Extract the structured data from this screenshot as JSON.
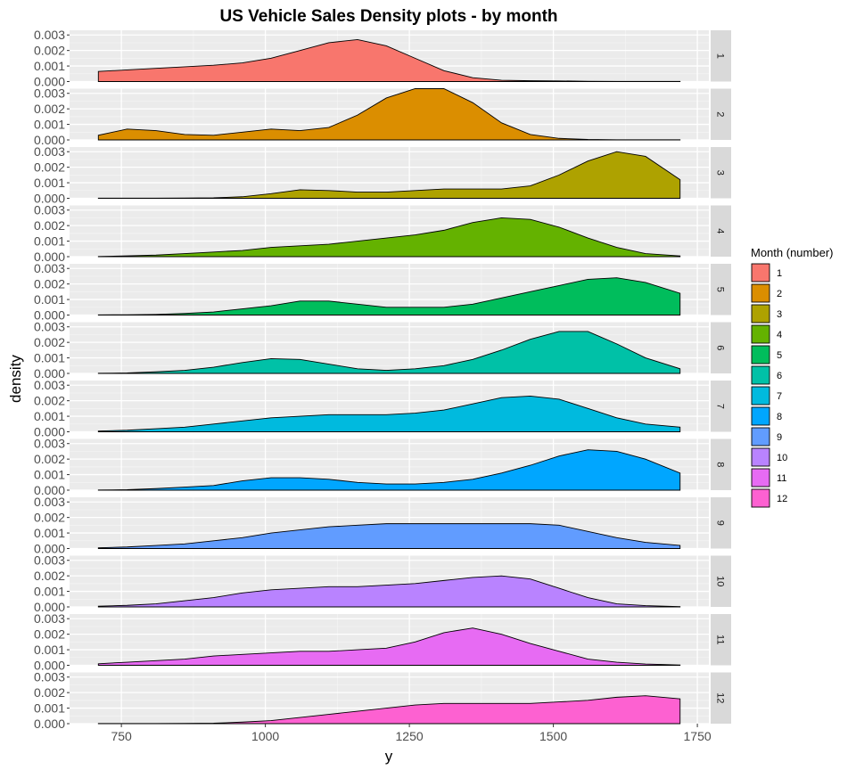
{
  "chart_data": {
    "type": "area",
    "title": "US Vehicle Sales Density plots - by month",
    "xlabel": "y",
    "ylabel": "density",
    "xlim": [
      660,
      1770
    ],
    "ylim": [
      0,
      0.0033
    ],
    "x_ticks": [
      750,
      1000,
      1250,
      1500,
      1750
    ],
    "y_ticks": [
      0.0,
      0.001,
      0.002,
      0.003
    ],
    "y_tick_labels": [
      "0.000",
      "0.001",
      "0.002",
      "0.003"
    ],
    "grid": true,
    "legend": {
      "title": "Month (number)",
      "placement": "right",
      "entries": [
        "1",
        "2",
        "3",
        "4",
        "5",
        "6",
        "7",
        "8",
        "9",
        "10",
        "11",
        "12"
      ]
    },
    "x": [
      710,
      760,
      810,
      860,
      910,
      960,
      1010,
      1060,
      1110,
      1160,
      1210,
      1260,
      1310,
      1360,
      1410,
      1460,
      1510,
      1560,
      1610,
      1660,
      1720
    ],
    "series": [
      {
        "name": "1",
        "color": "#F8766D",
        "strip": "1",
        "values": [
          0.00065,
          0.00075,
          0.00085,
          0.00095,
          0.00105,
          0.0012,
          0.0015,
          0.002,
          0.0025,
          0.0027,
          0.0023,
          0.0015,
          0.0007,
          0.00025,
          8e-05,
          5e-05,
          4e-05,
          2e-05,
          1e-05,
          1e-05,
          1e-05
        ]
      },
      {
        "name": "2",
        "color": "#DB8E00",
        "strip": "2",
        "values": [
          0.0003,
          0.0007,
          0.0006,
          0.00035,
          0.0003,
          0.0005,
          0.0007,
          0.0006,
          0.0008,
          0.0016,
          0.0027,
          0.0033,
          0.0033,
          0.0024,
          0.0011,
          0.00035,
          0.0001,
          3e-05,
          1e-05,
          1e-05,
          1e-05
        ]
      },
      {
        "name": "3",
        "color": "#AEA200",
        "strip": "3",
        "values": [
          1e-05,
          1e-05,
          1e-05,
          2e-05,
          3e-05,
          0.0001,
          0.0003,
          0.00055,
          0.0005,
          0.0004,
          0.0004,
          0.0005,
          0.0006,
          0.0006,
          0.0006,
          0.0008,
          0.0015,
          0.0024,
          0.003,
          0.0027,
          0.0012
        ]
      },
      {
        "name": "4",
        "color": "#64B200",
        "strip": "4",
        "values": [
          1e-05,
          5e-05,
          0.0001,
          0.0002,
          0.0003,
          0.0004,
          0.0006,
          0.0007,
          0.0008,
          0.001,
          0.0012,
          0.0014,
          0.0017,
          0.0022,
          0.0025,
          0.0024,
          0.0019,
          0.0012,
          0.0006,
          0.0002,
          5e-05
        ]
      },
      {
        "name": "5",
        "color": "#00BD5C",
        "strip": "5",
        "values": [
          1e-05,
          2e-05,
          4e-05,
          0.0001,
          0.0002,
          0.0004,
          0.0006,
          0.0009,
          0.0009,
          0.0007,
          0.0005,
          0.0005,
          0.0005,
          0.0007,
          0.0011,
          0.0015,
          0.0019,
          0.0023,
          0.0024,
          0.0021,
          0.0014
        ]
      },
      {
        "name": "6",
        "color": "#00C1A7",
        "strip": "6",
        "values": [
          1e-05,
          3e-05,
          0.0001,
          0.0002,
          0.0004,
          0.0007,
          0.00095,
          0.0009,
          0.0006,
          0.0003,
          0.0002,
          0.0003,
          0.0005,
          0.0009,
          0.0015,
          0.0022,
          0.0027,
          0.0027,
          0.0019,
          0.001,
          0.0003
        ]
      },
      {
        "name": "7",
        "color": "#00BADE",
        "strip": "7",
        "values": [
          5e-05,
          0.0001,
          0.0002,
          0.0003,
          0.0005,
          0.0007,
          0.0009,
          0.001,
          0.0011,
          0.0011,
          0.0011,
          0.0012,
          0.0014,
          0.0018,
          0.0022,
          0.0023,
          0.0021,
          0.0015,
          0.0009,
          0.0005,
          0.0003
        ]
      },
      {
        "name": "8",
        "color": "#00A6FF",
        "strip": "8",
        "values": [
          1e-05,
          3e-05,
          0.0001,
          0.0002,
          0.0003,
          0.0006,
          0.0008,
          0.0008,
          0.0007,
          0.0005,
          0.0004,
          0.0004,
          0.0005,
          0.0007,
          0.0011,
          0.0016,
          0.0022,
          0.0026,
          0.0025,
          0.002,
          0.0011
        ]
      },
      {
        "name": "9",
        "color": "#619CFF",
        "strip": "9",
        "values": [
          5e-05,
          0.0001,
          0.0002,
          0.0003,
          0.0005,
          0.0007,
          0.001,
          0.0012,
          0.0014,
          0.0015,
          0.0016,
          0.0016,
          0.0016,
          0.0016,
          0.0016,
          0.0016,
          0.0015,
          0.0011,
          0.0007,
          0.0004,
          0.0002
        ]
      },
      {
        "name": "10",
        "color": "#B983FF",
        "strip": "10",
        "values": [
          5e-05,
          0.0001,
          0.0002,
          0.0004,
          0.0006,
          0.0009,
          0.0011,
          0.0012,
          0.0013,
          0.0013,
          0.0014,
          0.0015,
          0.0017,
          0.0019,
          0.002,
          0.0018,
          0.0012,
          0.0006,
          0.0002,
          8e-05,
          2e-05
        ]
      },
      {
        "name": "11",
        "color": "#E76BF3",
        "strip": "11",
        "values": [
          0.0001,
          0.0002,
          0.0003,
          0.0004,
          0.0006,
          0.0007,
          0.0008,
          0.0009,
          0.0009,
          0.001,
          0.0011,
          0.0015,
          0.0021,
          0.0024,
          0.002,
          0.0014,
          0.0009,
          0.0004,
          0.0002,
          8e-05,
          2e-05
        ]
      },
      {
        "name": "12",
        "color": "#FD61D1",
        "strip": "12",
        "values": [
          1e-05,
          1e-05,
          1e-05,
          2e-05,
          3e-05,
          0.0001,
          0.0002,
          0.0004,
          0.0006,
          0.0008,
          0.001,
          0.0012,
          0.0013,
          0.0013,
          0.0013,
          0.0013,
          0.0014,
          0.0015,
          0.0017,
          0.0018,
          0.0016
        ]
      }
    ]
  }
}
